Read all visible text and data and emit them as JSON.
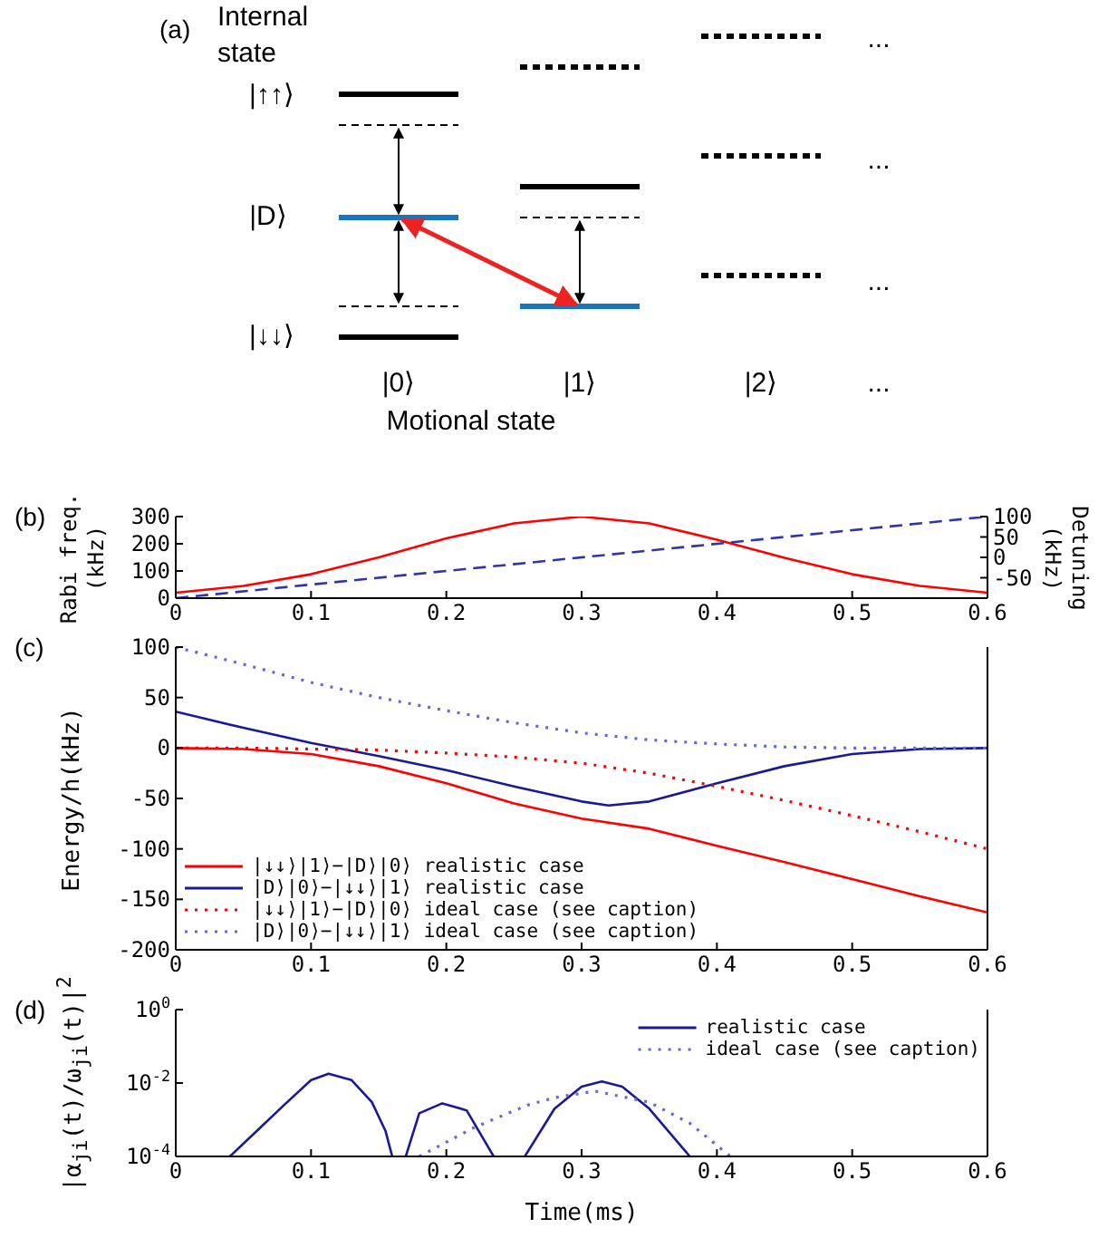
{
  "chart_data": [
    {
      "type": "other",
      "title": "(a)",
      "annotations": [
        "Internal state",
        "|↑↑⟩",
        "|D⟩",
        "|↓↓⟩",
        "|0⟩",
        "|1⟩",
        "|2⟩",
        "Motional state",
        "...",
        "...",
        "...",
        "..."
      ]
    },
    {
      "type": "line",
      "title": "(b)",
      "ylabel": "Rabi freq.\n(kHz)",
      "y2label": "Detuning\n(kHz)",
      "xlim": [
        0,
        0.6
      ],
      "xticks": [
        0,
        0.1,
        0.2,
        0.3,
        0.4,
        0.5,
        0.6
      ],
      "ylim": [
        0,
        300
      ],
      "yticks": [
        0,
        100,
        200,
        300
      ],
      "y2lim": [
        -100,
        100
      ],
      "y2ticks": [
        -50,
        0,
        50,
        100
      ],
      "legend": false,
      "series": [
        {
          "color": "#ff0000",
          "x": [
            0,
            0.05,
            0.1,
            0.15,
            0.2,
            0.25,
            0.3,
            0.35,
            0.4,
            0.45,
            0.5,
            0.55,
            0.6
          ],
          "values": [
            20,
            45,
            88,
            150,
            220,
            275,
            300,
            275,
            215,
            148,
            88,
            45,
            20
          ]
        },
        {
          "color": "#3333aa",
          "axis": "y2",
          "line_style": "dashed",
          "x": [
            0,
            0.6
          ],
          "values": [
            -100,
            100
          ]
        }
      ]
    },
    {
      "type": "line",
      "title": "(c)",
      "ylabel": "Energy/h(kHz)",
      "xlim": [
        0,
        0.6
      ],
      "xticks": [
        0,
        0.1,
        0.2,
        0.3,
        0.4,
        0.5,
        0.6
      ],
      "ylim": [
        -200,
        100
      ],
      "yticks": [
        -200,
        -150,
        -100,
        -50,
        0,
        50,
        100
      ],
      "legend": "bottom left",
      "x": [
        0,
        0.05,
        0.1,
        0.15,
        0.2,
        0.25,
        0.3,
        0.35,
        0.4,
        0.45,
        0.5,
        0.55,
        0.6
      ],
      "series": [
        {
          "name": "|↓↓⟩|1⟩−|D⟩|0⟩ realistic case",
          "color": "#ff0000",
          "values": [
            0,
            -1,
            -6,
            -18,
            -35,
            -55,
            -70,
            -80,
            -97,
            -113,
            -130,
            -147,
            -163
          ]
        },
        {
          "name": "|D⟩|0⟩−|↓↓⟩|1⟩ realistic case",
          "color": "#1a1a99",
          "x": [
            0,
            0.05,
            0.1,
            0.15,
            0.2,
            0.25,
            0.3,
            0.32,
            0.35,
            0.4,
            0.45,
            0.5,
            0.55,
            0.6
          ],
          "values": [
            36,
            20,
            5,
            -8,
            -22,
            -38,
            -53,
            -57,
            -53,
            -35,
            -18,
            -6,
            -1,
            0
          ]
        },
        {
          "name": "|↓↓⟩|1⟩−|D⟩|0⟩ ideal case (see caption)",
          "color": "#ff0000",
          "line_style": "dotted",
          "values": [
            0,
            0,
            -1,
            -2,
            -5,
            -9,
            -15,
            -25,
            -38,
            -52,
            -67,
            -83,
            -100
          ]
        },
        {
          "name": "|D⟩|0⟩−|↓↓⟩|1⟩ ideal case (see caption)",
          "color": "#6666dd",
          "line_style": "dotted",
          "values": [
            100,
            83,
            65,
            50,
            37,
            25,
            15,
            8,
            4,
            1,
            0,
            0,
            0
          ]
        }
      ]
    },
    {
      "type": "line",
      "title": "(d)",
      "xlabel": "Time(ms)",
      "ylabel": "|α$_{ji}$(t)/ω$_{ji}$(t)|$^{2}$",
      "log": true,
      "xlim": [
        0,
        0.6
      ],
      "xticks": [
        0,
        0.1,
        0.2,
        0.3,
        0.4,
        0.5,
        0.6
      ],
      "ylim": [
        0.0001,
        1
      ],
      "yticks": [
        {
          "value": 0.0001,
          "label": "10$^{-4}$"
        },
        {
          "value": 0.01,
          "label": "10$^{-2}$"
        },
        {
          "value": 1,
          "label": "10$^{0}$"
        }
      ],
      "legend": "top right",
      "series": [
        {
          "name": "realistic case",
          "color": "#1a1a99",
          "x": [
            0.04,
            0.06,
            0.08,
            0.1,
            0.113,
            0.13,
            0.145,
            0.155,
            0.16,
            0.165,
            0.17,
            0.18,
            0.197,
            0.215,
            0.235,
            0.245,
            0.258,
            0.28,
            0.3,
            0.315,
            0.33,
            0.35,
            0.38
          ],
          "values": [
            0.0001,
            0.0005,
            0.0025,
            0.012,
            0.018,
            0.012,
            0.003,
            0.0005,
            0.0001,
            null,
            0.0001,
            0.0015,
            0.0028,
            0.0018,
            0.0001,
            null,
            0.0001,
            0.002,
            0.008,
            0.011,
            0.008,
            0.002,
            0.0001
          ]
        },
        {
          "name": "ideal case (see caption)",
          "color": "#6666dd",
          "line_style": "dotted",
          "x": [
            0.18,
            0.22,
            0.26,
            0.28,
            0.31,
            0.35,
            0.38,
            0.41
          ],
          "values": [
            0.0001,
            0.0006,
            0.0025,
            0.004,
            0.006,
            0.003,
            0.0008,
            0.0001
          ]
        }
      ]
    }
  ]
}
